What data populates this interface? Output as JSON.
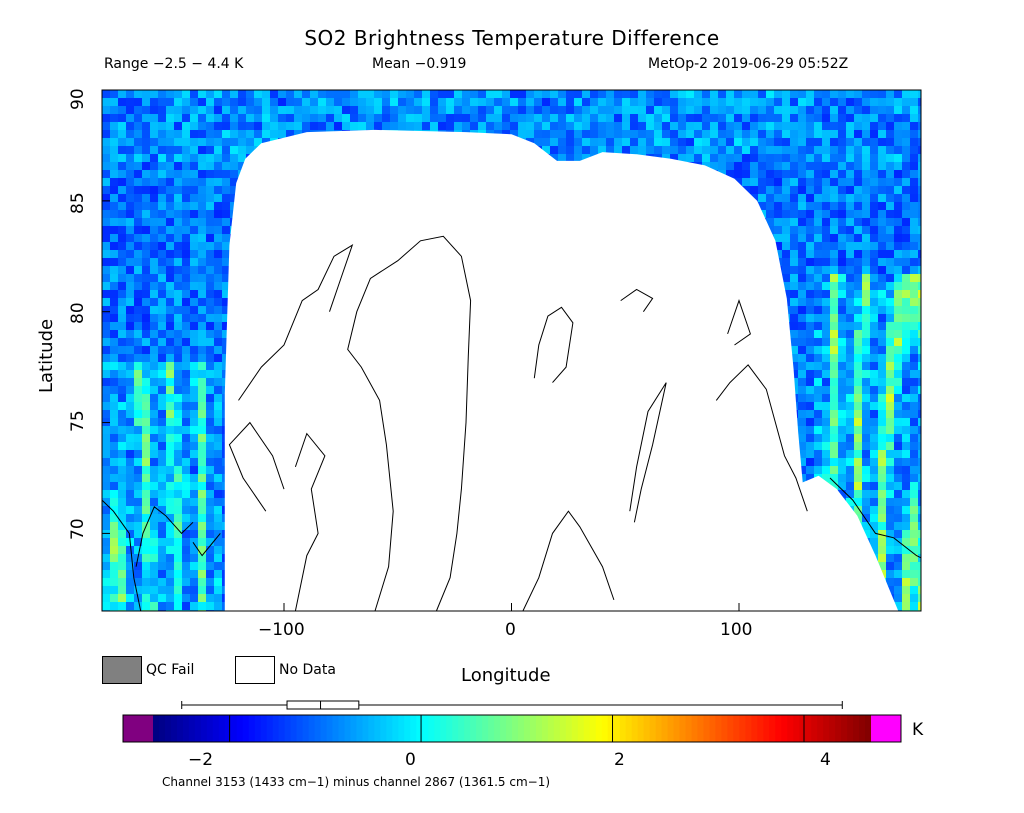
{
  "title": "SO2 Brightness Temperature Difference",
  "header": {
    "range": "Range −2.5 − 4.4 K",
    "mean": "Mean −0.919",
    "source": "MetOp-2 2019-06-29 05:52Z"
  },
  "axes": {
    "ylabel": "Latitude",
    "xlabel": "Longitude",
    "y_ticks": [
      "90",
      "85",
      "80",
      "75",
      "70"
    ],
    "x_ticks": [
      "−100",
      "0",
      "100"
    ]
  },
  "legend": {
    "qc_fail": "QC Fail",
    "no_data": "No Data",
    "qc_fail_color": "#808080",
    "no_data_color": "#ffffff"
  },
  "colorbar": {
    "ticks": [
      "−2",
      "0",
      "2",
      "4"
    ],
    "unit": "K",
    "under_color": "#800080",
    "over_color": "#ff00ff",
    "colormap": "jet",
    "boxplot": {
      "min": -2.5,
      "q1": -1.4,
      "median": -1.05,
      "q3": -0.65,
      "max": 4.4
    }
  },
  "footnote": "Channel 3153 (1433 cm−1) minus channel 2867 (1361.5 cm−1)",
  "chart_data": {
    "type": "heatmap",
    "title": "SO2 Brightness Temperature Difference",
    "xlabel": "Longitude",
    "ylabel": "Latitude",
    "xlim": [
      -180,
      180
    ],
    "ylim": [
      66.5,
      90
    ],
    "x_ticks": [
      -100,
      0,
      100
    ],
    "y_ticks": [
      70,
      75,
      80,
      85,
      90
    ],
    "colorbar_range": [
      -2.8,
      4.7
    ],
    "colorbar_ticks": [
      -2,
      0,
      2,
      4
    ],
    "data_range": [
      -2.5,
      4.4
    ],
    "mean": -0.919,
    "grid": false
  }
}
